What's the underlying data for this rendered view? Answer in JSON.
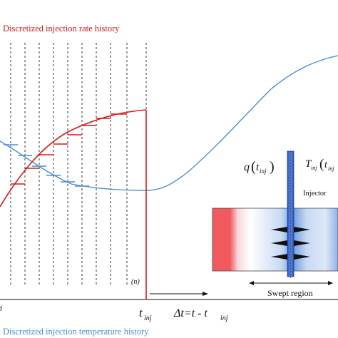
{
  "labels": {
    "rate_history": "Discretized injection rate history",
    "temperature_history": "Discretized injection temperature history",
    "step_index": "(n)",
    "t_inj_axis": "t",
    "t_inj_axis_sub": "inj",
    "delta_t_lhs": "Δt=t - t",
    "delta_t_sub": "inj",
    "q_label": "q",
    "q_arg": "t",
    "q_arg_sub": "inj",
    "T_label": "T",
    "T_sub": "inj",
    "T_arg": "t",
    "T_arg_sub": "inj",
    "injector": "Injector",
    "swept_region": "Swept region",
    "left_edge_sub": "inj"
  },
  "colors": {
    "rate": "#e0161b",
    "temperature": "#4a8fd0",
    "injector_pipe": "#3a66c4",
    "reservoir_hot": "#f05a5f",
    "reservoir_cold": "#6b9ce0",
    "axis": "#111111",
    "grid": "#222222"
  },
  "icons": {
    "arrow": "right-arrow-icon",
    "double_arrow": "double-headed-arrow-icon",
    "perforation": "triangle-perforation-icon"
  }
}
